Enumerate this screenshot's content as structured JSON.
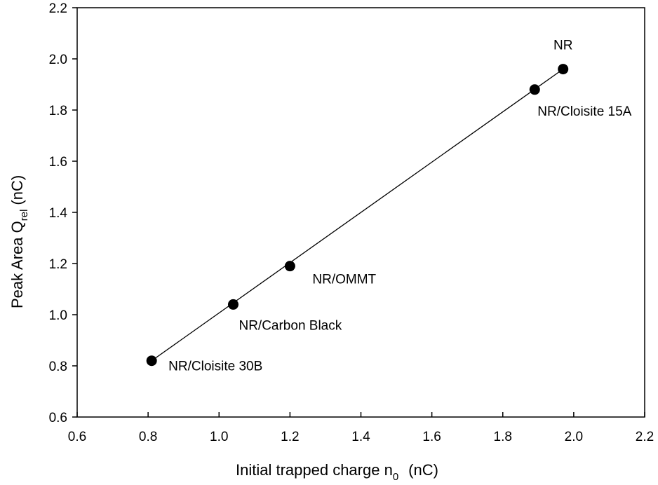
{
  "chart_data": {
    "type": "scatter",
    "title": "",
    "xlabel": "Initial trapped charge n0 (nC)",
    "ylabel": "Peak Area Qrel (nC)",
    "xlabel_parts": {
      "main": "Initial trapped charge n",
      "sub": "0",
      "unit": "(nC)"
    },
    "ylabel_parts": {
      "main": "Peak Area Q",
      "sub": "rel",
      "unit": "(nC)"
    },
    "xlim": [
      0.6,
      2.2
    ],
    "ylim": [
      0.6,
      2.2
    ],
    "xticks": [
      "0.6",
      "0.8",
      "1.0",
      "1.2",
      "1.4",
      "1.6",
      "1.8",
      "2.0",
      "2.2"
    ],
    "yticks": [
      "0.6",
      "0.8",
      "1.0",
      "1.2",
      "1.4",
      "1.6",
      "1.8",
      "2.0",
      "2.2"
    ],
    "grid": false,
    "legend": null,
    "series": [
      {
        "name": "samples",
        "marker": "filled-circle",
        "color": "#000000",
        "fit_line": true,
        "points": [
          {
            "label": "NR/Cloisite 30B",
            "x": 0.81,
            "y": 0.82
          },
          {
            "label": "NR/Carbon Black",
            "x": 1.04,
            "y": 1.04
          },
          {
            "label": "NR/OMMT",
            "x": 1.2,
            "y": 1.19
          },
          {
            "label": "NR/Cloisite 15A",
            "x": 1.89,
            "y": 1.88
          },
          {
            "label": "NR",
            "x": 1.97,
            "y": 1.96
          }
        ]
      }
    ]
  }
}
